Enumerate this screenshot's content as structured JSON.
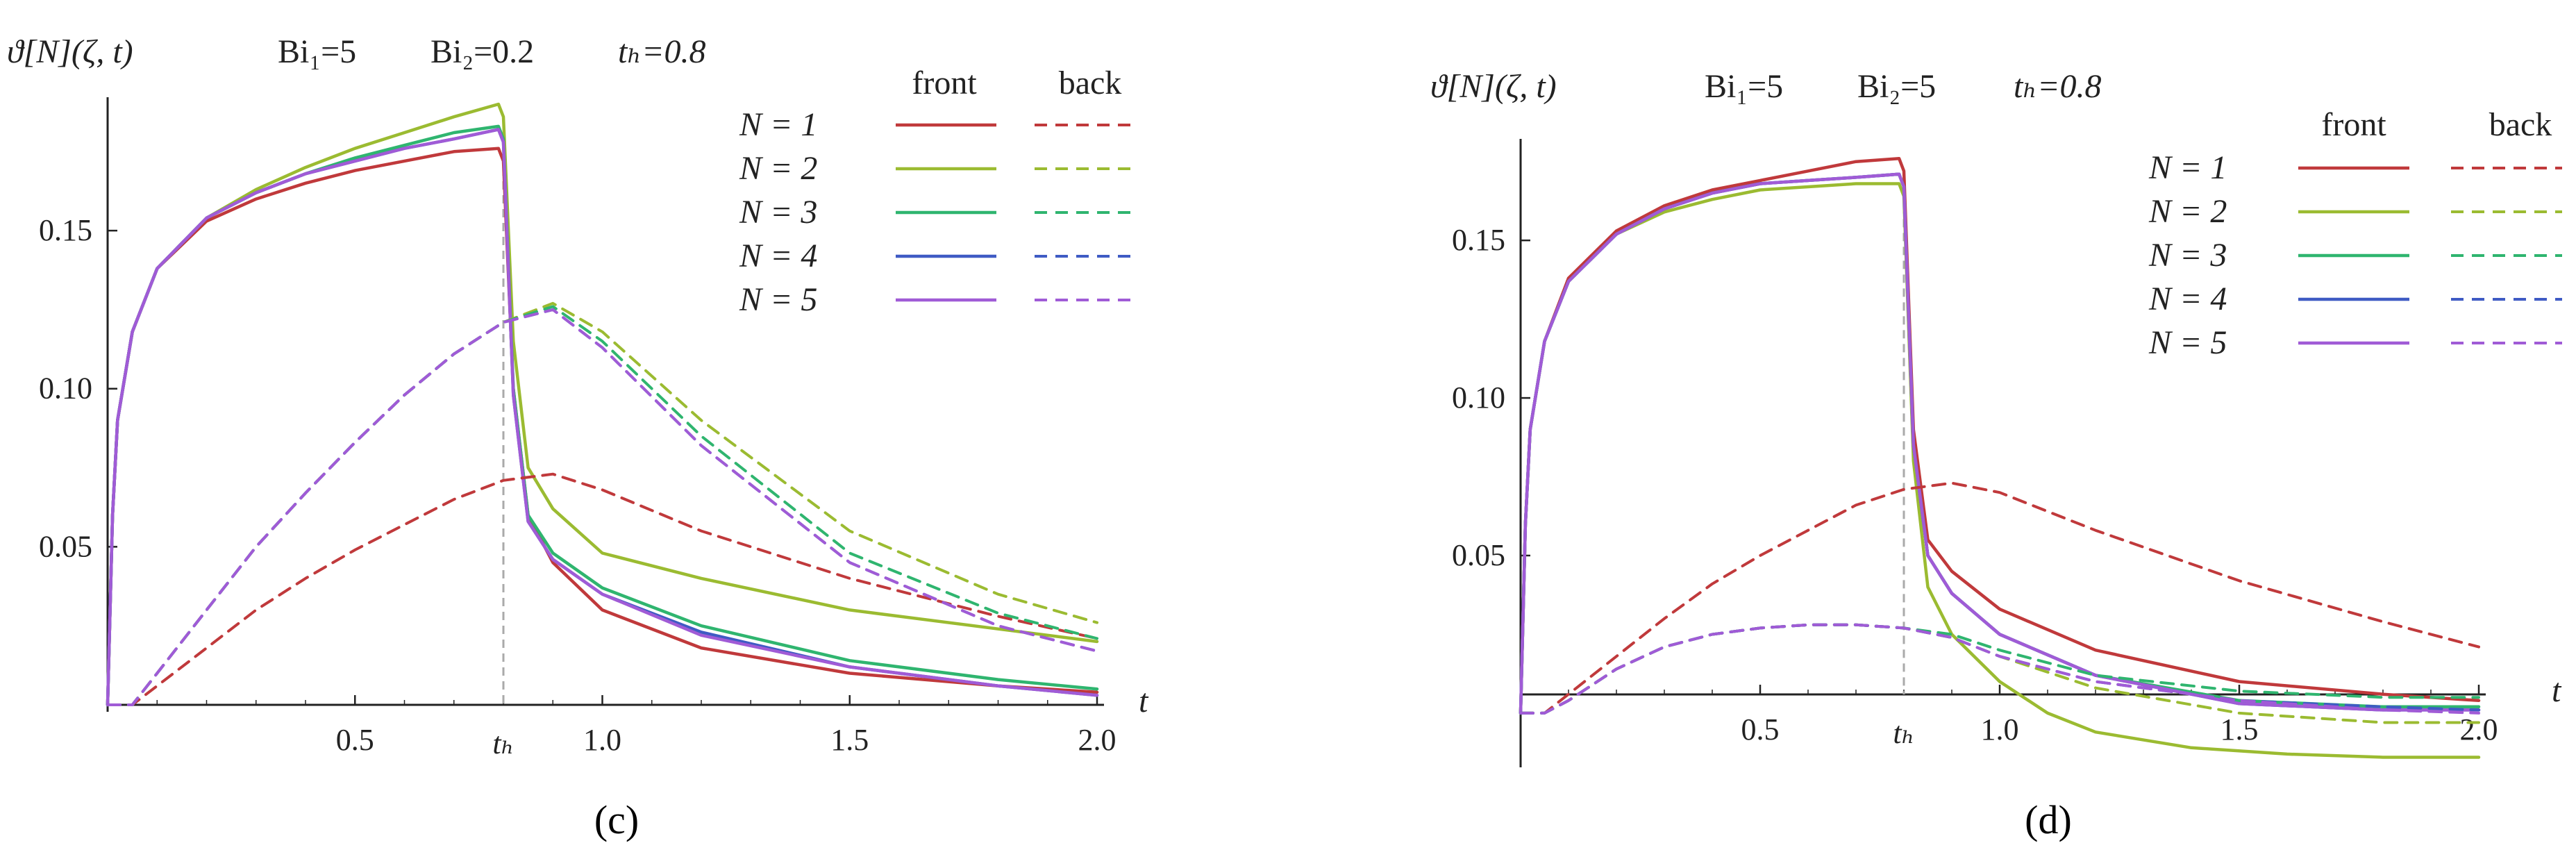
{
  "colors": {
    "series": [
      "#c0393b",
      "#9bbb31",
      "#2fb56f",
      "#3f5bc4",
      "#a05bd6"
    ],
    "axis": "#222222",
    "marker": "#aaaaaa"
  },
  "chart_data": [
    {
      "type": "line",
      "panel_label": "c",
      "panel_label_text": "(c)",
      "ylabel": "ϑ[N](ζ, t)",
      "xlabel": "t",
      "params": {
        "bi1": "Bi₁=5",
        "bi2": "Bi₂=0.2",
        "th": "tₕ=0.8"
      },
      "xlim": [
        0,
        2.0
      ],
      "ylim": [
        0,
        0.19
      ],
      "x_ticks": [
        "0.5",
        "1.0",
        "1.5",
        "2.0"
      ],
      "y_ticks": [
        "0.05",
        "0.10",
        "0.15"
      ],
      "marker_label": "tₕ",
      "marker_x": 0.8,
      "legend": {
        "col_front": "front",
        "col_back": "back",
        "entries": [
          "N = 1",
          "N = 2",
          "N = 3",
          "N = 4",
          "N = 5"
        ]
      },
      "series": [
        {
          "legend": "N = 1",
          "kind": "front",
          "x": [
            0,
            0.01,
            0.02,
            0.05,
            0.1,
            0.2,
            0.3,
            0.4,
            0.5,
            0.6,
            0.7,
            0.79,
            0.8,
            0.82,
            0.85,
            0.9,
            1.0,
            1.2,
            1.5,
            1.8,
            2.0
          ],
          "y": [
            0,
            0.06,
            0.09,
            0.118,
            0.138,
            0.153,
            0.16,
            0.165,
            0.169,
            0.172,
            0.175,
            0.176,
            0.172,
            0.1,
            0.06,
            0.045,
            0.03,
            0.018,
            0.01,
            0.006,
            0.004
          ]
        },
        {
          "legend": "N = 2",
          "kind": "front",
          "x": [
            0,
            0.01,
            0.02,
            0.05,
            0.1,
            0.2,
            0.3,
            0.4,
            0.5,
            0.6,
            0.7,
            0.79,
            0.8,
            0.82,
            0.85,
            0.9,
            1.0,
            1.2,
            1.5,
            1.8,
            2.0
          ],
          "y": [
            0,
            0.06,
            0.09,
            0.118,
            0.138,
            0.154,
            0.163,
            0.17,
            0.176,
            0.181,
            0.186,
            0.19,
            0.186,
            0.115,
            0.075,
            0.062,
            0.048,
            0.04,
            0.03,
            0.024,
            0.02
          ]
        },
        {
          "legend": "N = 3",
          "kind": "front",
          "x": [
            0,
            0.01,
            0.02,
            0.05,
            0.1,
            0.2,
            0.3,
            0.4,
            0.5,
            0.6,
            0.7,
            0.79,
            0.8,
            0.82,
            0.85,
            0.9,
            1.0,
            1.2,
            1.5,
            1.8,
            2.0
          ],
          "y": [
            0,
            0.06,
            0.09,
            0.118,
            0.138,
            0.154,
            0.162,
            0.168,
            0.173,
            0.177,
            0.181,
            0.183,
            0.179,
            0.1,
            0.06,
            0.048,
            0.037,
            0.025,
            0.014,
            0.008,
            0.005
          ]
        },
        {
          "legend": "N = 4",
          "kind": "front",
          "x": [
            0,
            0.01,
            0.02,
            0.05,
            0.1,
            0.2,
            0.3,
            0.4,
            0.5,
            0.6,
            0.7,
            0.79,
            0.8,
            0.82,
            0.85,
            0.9,
            1.0,
            1.2,
            1.5,
            1.8,
            2.0
          ],
          "y": [
            0,
            0.06,
            0.09,
            0.118,
            0.138,
            0.154,
            0.162,
            0.168,
            0.172,
            0.176,
            0.179,
            0.182,
            0.178,
            0.098,
            0.058,
            0.046,
            0.035,
            0.023,
            0.012,
            0.006,
            0.003
          ]
        },
        {
          "legend": "N = 5",
          "kind": "front",
          "x": [
            0,
            0.01,
            0.02,
            0.05,
            0.1,
            0.2,
            0.3,
            0.4,
            0.5,
            0.6,
            0.7,
            0.79,
            0.8,
            0.82,
            0.85,
            0.9,
            1.0,
            1.2,
            1.5,
            1.8,
            2.0
          ],
          "y": [
            0,
            0.06,
            0.09,
            0.118,
            0.138,
            0.154,
            0.162,
            0.168,
            0.172,
            0.176,
            0.179,
            0.182,
            0.178,
            0.098,
            0.058,
            0.046,
            0.035,
            0.022,
            0.012,
            0.006,
            0.003
          ]
        },
        {
          "legend": "N = 1",
          "kind": "back",
          "x": [
            0,
            0.05,
            0.1,
            0.2,
            0.3,
            0.4,
            0.5,
            0.6,
            0.7,
            0.8,
            0.9,
            1.0,
            1.2,
            1.5,
            1.8,
            2.0
          ],
          "y": [
            0,
            0,
            0.006,
            0.018,
            0.03,
            0.04,
            0.049,
            0.057,
            0.065,
            0.071,
            0.073,
            0.068,
            0.055,
            0.04,
            0.028,
            0.021
          ]
        },
        {
          "legend": "N = 2",
          "kind": "back",
          "x": [
            0,
            0.05,
            0.1,
            0.2,
            0.3,
            0.4,
            0.5,
            0.6,
            0.7,
            0.8,
            0.9,
            1.0,
            1.2,
            1.5,
            1.8,
            2.0
          ],
          "y": [
            0,
            0,
            0.01,
            0.03,
            0.05,
            0.067,
            0.083,
            0.098,
            0.111,
            0.121,
            0.127,
            0.118,
            0.09,
            0.055,
            0.035,
            0.026
          ]
        },
        {
          "legend": "N = 3",
          "kind": "back",
          "x": [
            0,
            0.05,
            0.1,
            0.2,
            0.3,
            0.4,
            0.5,
            0.6,
            0.7,
            0.8,
            0.9,
            1.0,
            1.2,
            1.5,
            1.8,
            2.0
          ],
          "y": [
            0,
            0,
            0.01,
            0.03,
            0.05,
            0.067,
            0.083,
            0.098,
            0.111,
            0.121,
            0.126,
            0.115,
            0.085,
            0.048,
            0.029,
            0.021
          ]
        },
        {
          "legend": "N = 4",
          "kind": "back",
          "x": [
            0,
            0.05,
            0.1,
            0.2,
            0.3,
            0.4,
            0.5,
            0.6,
            0.7,
            0.8,
            0.9,
            1.0,
            1.2,
            1.5,
            1.8,
            2.0
          ],
          "y": [
            0,
            0,
            0.01,
            0.03,
            0.05,
            0.067,
            0.083,
            0.098,
            0.111,
            0.121,
            0.125,
            0.113,
            0.082,
            0.045,
            0.025,
            0.017
          ]
        },
        {
          "legend": "N = 5",
          "kind": "back",
          "x": [
            0,
            0.05,
            0.1,
            0.2,
            0.3,
            0.4,
            0.5,
            0.6,
            0.7,
            0.8,
            0.9,
            1.0,
            1.2,
            1.5,
            1.8,
            2.0
          ],
          "y": [
            0,
            0,
            0.01,
            0.03,
            0.05,
            0.067,
            0.083,
            0.098,
            0.111,
            0.121,
            0.125,
            0.113,
            0.082,
            0.045,
            0.025,
            0.017
          ]
        }
      ]
    },
    {
      "type": "line",
      "panel_label": "d",
      "panel_label_text": "(d)",
      "ylabel": "ϑ[N](ζ, t)",
      "xlabel": "t",
      "params": {
        "bi1": "Bi₁=5",
        "bi2": "Bi₂=5",
        "th": "tₕ=0.8"
      },
      "xlim": [
        0,
        2.0
      ],
      "ylim": [
        -0.015,
        0.18
      ],
      "x_ticks": [
        "0.5",
        "1.0",
        "1.5",
        "2.0"
      ],
      "y_ticks": [
        "0.05",
        "0.10",
        "0.15"
      ],
      "marker_label": "tₕ",
      "marker_x": 0.8,
      "legend": {
        "col_front": "front",
        "col_back": "back",
        "entries": [
          "N = 1",
          "N = 2",
          "N = 3",
          "N = 4",
          "N = 5"
        ]
      },
      "series": [
        {
          "legend": "N = 1",
          "kind": "front",
          "x": [
            0,
            0.01,
            0.02,
            0.05,
            0.1,
            0.2,
            0.3,
            0.4,
            0.5,
            0.6,
            0.7,
            0.79,
            0.8,
            0.82,
            0.85,
            0.9,
            1.0,
            1.2,
            1.5,
            1.8,
            2.0
          ],
          "y": [
            0,
            0.06,
            0.09,
            0.118,
            0.138,
            0.153,
            0.161,
            0.166,
            0.169,
            0.172,
            0.175,
            0.176,
            0.172,
            0.09,
            0.055,
            0.045,
            0.033,
            0.02,
            0.01,
            0.006,
            0.004
          ]
        },
        {
          "legend": "N = 2",
          "kind": "front",
          "x": [
            0,
            0.01,
            0.02,
            0.05,
            0.1,
            0.2,
            0.3,
            0.4,
            0.5,
            0.6,
            0.7,
            0.79,
            0.8,
            0.82,
            0.85,
            0.9,
            1.0,
            1.1,
            1.2,
            1.4,
            1.6,
            1.8,
            2.0
          ],
          "y": [
            0,
            0.06,
            0.09,
            0.118,
            0.137,
            0.152,
            0.159,
            0.163,
            0.166,
            0.167,
            0.168,
            0.168,
            0.164,
            0.08,
            0.04,
            0.025,
            0.01,
            0.0,
            -0.006,
            -0.011,
            -0.013,
            -0.014,
            -0.014
          ]
        },
        {
          "legend": "N = 3",
          "kind": "front",
          "x": [
            0,
            0.01,
            0.02,
            0.05,
            0.1,
            0.2,
            0.3,
            0.4,
            0.5,
            0.6,
            0.7,
            0.79,
            0.8,
            0.82,
            0.85,
            0.9,
            1.0,
            1.2,
            1.5,
            1.8,
            2.0
          ],
          "y": [
            0,
            0.06,
            0.09,
            0.118,
            0.137,
            0.152,
            0.16,
            0.165,
            0.168,
            0.169,
            0.17,
            0.171,
            0.167,
            0.085,
            0.05,
            0.038,
            0.025,
            0.012,
            0.004,
            0.002,
            0.002
          ]
        },
        {
          "legend": "N = 4",
          "kind": "front",
          "x": [
            0,
            0.01,
            0.02,
            0.05,
            0.1,
            0.2,
            0.3,
            0.4,
            0.5,
            0.6,
            0.7,
            0.79,
            0.8,
            0.82,
            0.85,
            0.9,
            1.0,
            1.2,
            1.5,
            1.8,
            2.0
          ],
          "y": [
            0,
            0.06,
            0.09,
            0.118,
            0.137,
            0.152,
            0.16,
            0.165,
            0.168,
            0.169,
            0.17,
            0.171,
            0.167,
            0.085,
            0.05,
            0.038,
            0.025,
            0.012,
            0.003,
            0.001,
            0.001
          ]
        },
        {
          "legend": "N = 5",
          "kind": "front",
          "x": [
            0,
            0.01,
            0.02,
            0.05,
            0.1,
            0.2,
            0.3,
            0.4,
            0.5,
            0.6,
            0.7,
            0.79,
            0.8,
            0.82,
            0.85,
            0.9,
            1.0,
            1.2,
            1.5,
            1.8,
            2.0
          ],
          "y": [
            0,
            0.06,
            0.09,
            0.118,
            0.137,
            0.152,
            0.16,
            0.165,
            0.168,
            0.169,
            0.17,
            0.171,
            0.167,
            0.085,
            0.05,
            0.038,
            0.025,
            0.012,
            0.003,
            0.001,
            0.001
          ]
        },
        {
          "legend": "N = 1",
          "kind": "back",
          "x": [
            0,
            0.05,
            0.1,
            0.2,
            0.3,
            0.4,
            0.5,
            0.6,
            0.7,
            0.8,
            0.9,
            1.0,
            1.2,
            1.5,
            1.8,
            2.0
          ],
          "y": [
            0,
            0,
            0.006,
            0.018,
            0.03,
            0.041,
            0.05,
            0.058,
            0.066,
            0.071,
            0.073,
            0.07,
            0.058,
            0.042,
            0.029,
            0.021
          ]
        },
        {
          "legend": "N = 2",
          "kind": "back",
          "x": [
            0,
            0.05,
            0.1,
            0.2,
            0.3,
            0.4,
            0.5,
            0.6,
            0.7,
            0.8,
            0.9,
            1.0,
            1.2,
            1.5,
            1.8,
            2.0
          ],
          "y": [
            0,
            0,
            0.004,
            0.014,
            0.021,
            0.025,
            0.027,
            0.028,
            0.028,
            0.027,
            0.024,
            0.018,
            0.008,
            0.0,
            -0.003,
            -0.003
          ]
        },
        {
          "legend": "N = 3",
          "kind": "back",
          "x": [
            0,
            0.05,
            0.1,
            0.2,
            0.3,
            0.4,
            0.5,
            0.6,
            0.7,
            0.8,
            0.9,
            1.0,
            1.2,
            1.5,
            1.8,
            2.0
          ],
          "y": [
            0,
            0,
            0.004,
            0.014,
            0.021,
            0.025,
            0.027,
            0.028,
            0.028,
            0.027,
            0.025,
            0.02,
            0.012,
            0.007,
            0.005,
            0.005
          ]
        },
        {
          "legend": "N = 4",
          "kind": "back",
          "x": [
            0,
            0.05,
            0.1,
            0.2,
            0.3,
            0.4,
            0.5,
            0.6,
            0.7,
            0.8,
            0.9,
            1.0,
            1.2,
            1.5,
            1.8,
            2.0
          ],
          "y": [
            0,
            0,
            0.004,
            0.014,
            0.021,
            0.025,
            0.027,
            0.028,
            0.028,
            0.027,
            0.024,
            0.018,
            0.01,
            0.004,
            0.002,
            0.001
          ]
        },
        {
          "legend": "N = 5",
          "kind": "back",
          "x": [
            0,
            0.05,
            0.1,
            0.2,
            0.3,
            0.4,
            0.5,
            0.6,
            0.7,
            0.8,
            0.9,
            1.0,
            1.2,
            1.5,
            1.8,
            2.0
          ],
          "y": [
            0,
            0,
            0.004,
            0.014,
            0.021,
            0.025,
            0.027,
            0.028,
            0.028,
            0.027,
            0.024,
            0.018,
            0.01,
            0.004,
            0.001,
            0.0
          ]
        }
      ]
    }
  ]
}
